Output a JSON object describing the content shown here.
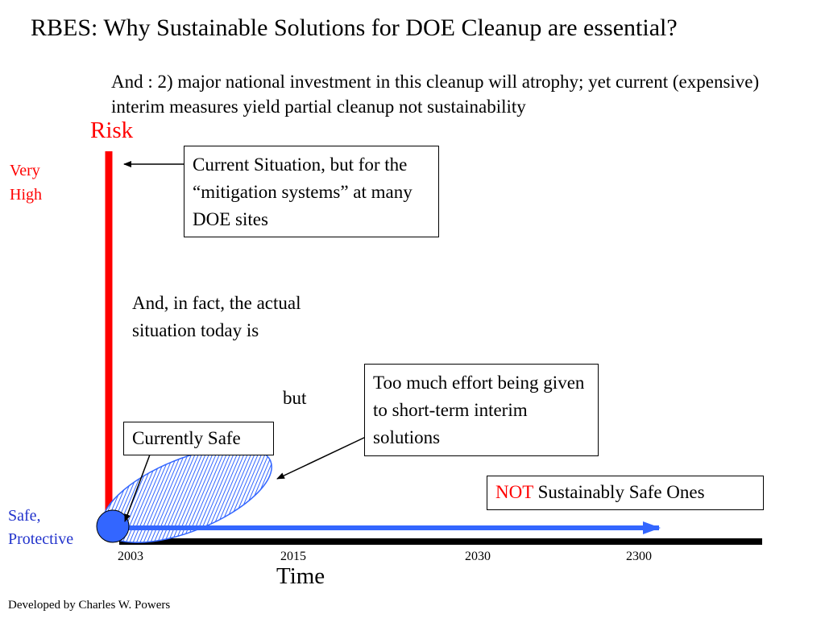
{
  "title": "RBES: Why Sustainable Solutions for DOE Cleanup are essential?",
  "subtitle": "And : 2) major national investment in this cleanup will atrophy; yet current (expensive) interim measures yield partial cleanup not sustainability",
  "axes": {
    "y_label": "Risk",
    "y_top_label": "Very High",
    "y_bottom_label": "Safe, Protective",
    "x_label": "Time",
    "x_ticks": [
      "2003",
      "2015",
      "2030",
      "2300"
    ]
  },
  "callouts": {
    "current_situation": "Current Situation, but for the “mitigation systems” at many DOE sites",
    "actual_situation": "And, in fact, the actual situation today is",
    "but": "but",
    "currently_safe": "Currently Safe",
    "too_much_effort": "Too much effort being given to short-term interim solutions",
    "not_word": "NOT",
    "sustainably_safe_rest": " Sustainably Safe Ones"
  },
  "credit": "Developed by Charles W. Powers",
  "colors": {
    "risk_axis": "#ff0000",
    "time_axis": "#000000",
    "safe_arrow": "#3366ff",
    "safe_dot": "#3366ff",
    "ellipse_hatch": "#3366ff",
    "safe_label": "#2233cc"
  }
}
